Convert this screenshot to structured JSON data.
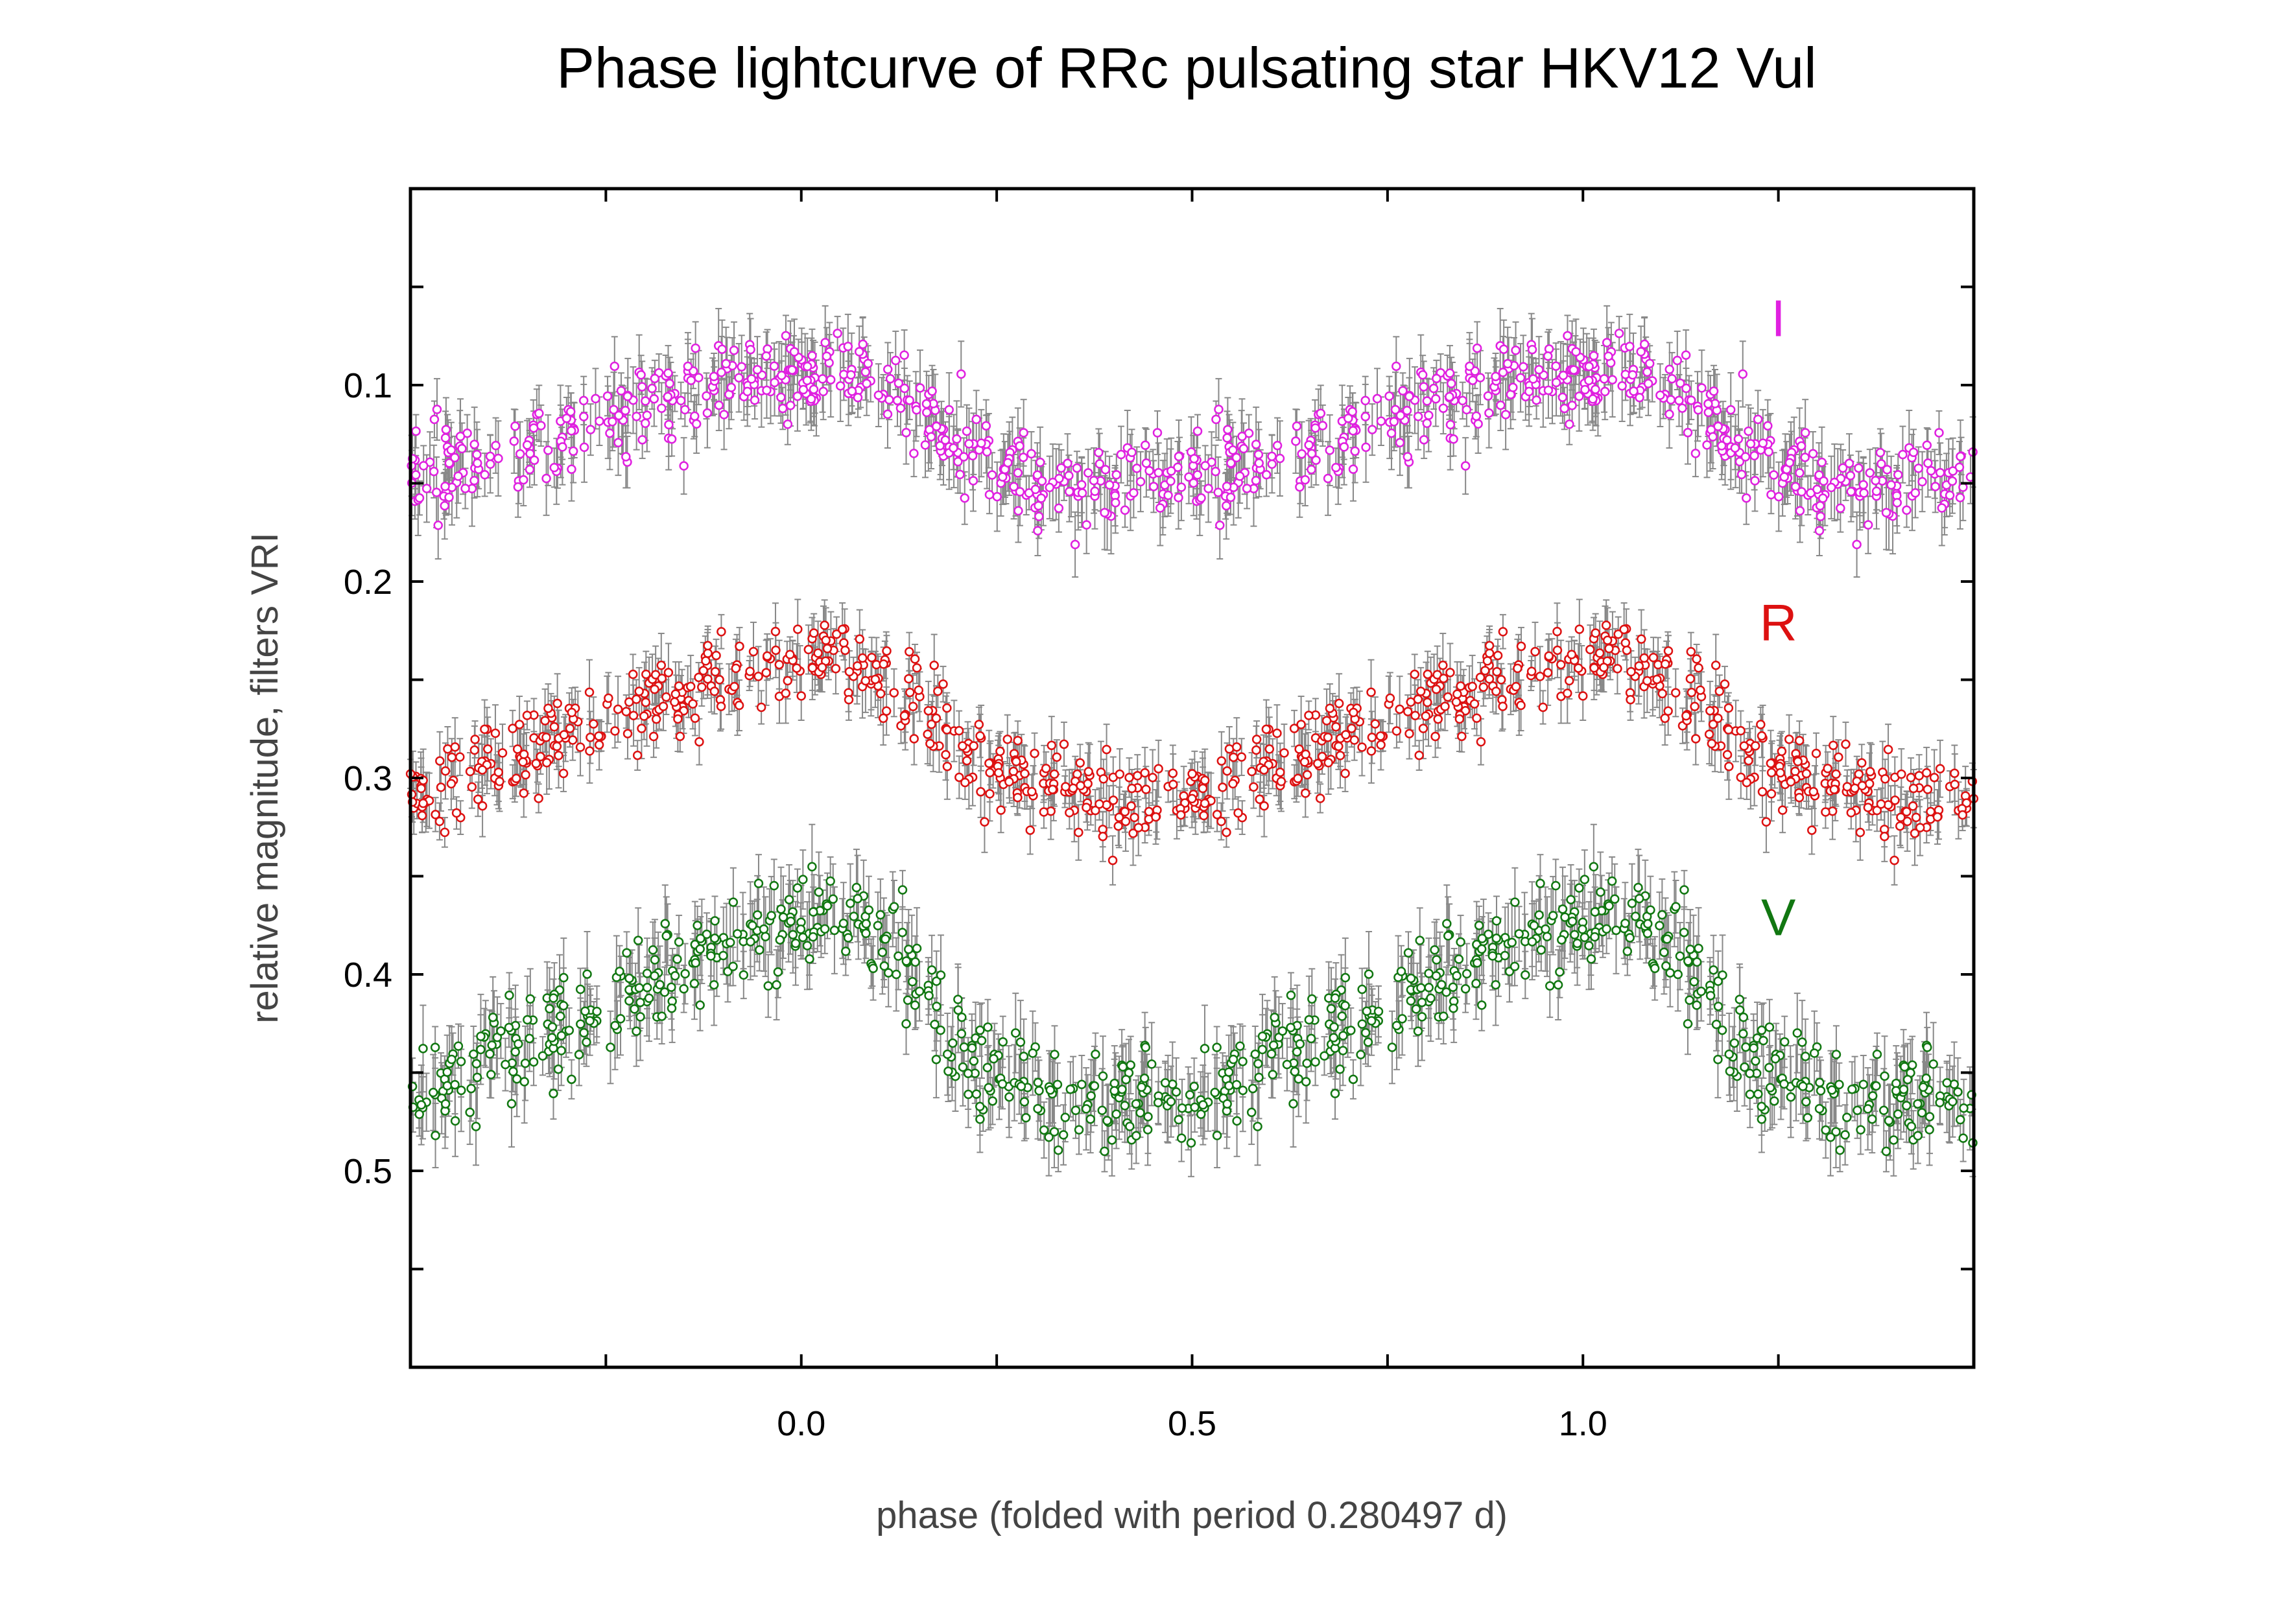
{
  "chart_data": {
    "type": "scatter",
    "title": "Phase lightcurve of RRc pulsating star HKV12 Vul",
    "xlabel": "phase  (folded with period 0.280497 d)",
    "ylabel": "relative magnitude, filters VRI",
    "xlim": [
      -0.5,
      1.5
    ],
    "ylim": [
      0.6,
      0.0
    ],
    "y_inverted": true,
    "x_ticks": [
      {
        "value": -0.25,
        "label": ""
      },
      {
        "value": 0.0,
        "label": "0.0"
      },
      {
        "value": 0.25,
        "label": ""
      },
      {
        "value": 0.5,
        "label": "0.5"
      },
      {
        "value": 0.75,
        "label": ""
      },
      {
        "value": 1.0,
        "label": "1.0"
      },
      {
        "value": 1.25,
        "label": ""
      }
    ],
    "y_ticks": [
      {
        "value": 0.05,
        "label": ""
      },
      {
        "value": 0.1,
        "label": "0.1"
      },
      {
        "value": 0.15,
        "label": ""
      },
      {
        "value": 0.2,
        "label": "0.2"
      },
      {
        "value": 0.25,
        "label": ""
      },
      {
        "value": 0.3,
        "label": "0.3"
      },
      {
        "value": 0.35,
        "label": ""
      },
      {
        "value": 0.4,
        "label": "0.4"
      },
      {
        "value": 0.45,
        "label": ""
      },
      {
        "value": 0.5,
        "label": "0.5"
      },
      {
        "value": 0.55,
        "label": ""
      }
    ],
    "grid": false,
    "error_bar_color": "#888888",
    "series": [
      {
        "name": "I",
        "color": "#e020e0",
        "label_position": {
          "x": 1.25,
          "y": 0.075
        },
        "profile": [
          [
            0.0,
            0.145
          ],
          [
            0.1,
            0.138
          ],
          [
            0.2,
            0.125
          ],
          [
            0.3,
            0.112
          ],
          [
            0.4,
            0.1
          ],
          [
            0.5,
            0.094
          ],
          [
            0.58,
            0.095
          ],
          [
            0.63,
            0.105
          ],
          [
            0.67,
            0.122
          ],
          [
            0.72,
            0.138
          ],
          [
            0.8,
            0.148
          ],
          [
            0.9,
            0.152
          ],
          [
            0.95,
            0.15
          ],
          [
            1.0,
            0.145
          ]
        ],
        "phase_zero_offset": 0.5,
        "scatter": 0.011,
        "error": 0.014
      },
      {
        "name": "R",
        "color": "#dd1111",
        "label_position": {
          "x": 1.25,
          "y": 0.23
        },
        "profile": [
          [
            0.0,
            0.308
          ],
          [
            0.1,
            0.294
          ],
          [
            0.2,
            0.276
          ],
          [
            0.3,
            0.264
          ],
          [
            0.4,
            0.25
          ],
          [
            0.5,
            0.238
          ],
          [
            0.55,
            0.24
          ],
          [
            0.6,
            0.248
          ],
          [
            0.65,
            0.263
          ],
          [
            0.7,
            0.283
          ],
          [
            0.75,
            0.297
          ],
          [
            0.8,
            0.303
          ],
          [
            0.9,
            0.31
          ],
          [
            0.95,
            0.312
          ],
          [
            1.0,
            0.308
          ]
        ],
        "phase_zero_offset": 0.5,
        "scatter": 0.011,
        "error": 0.012
      },
      {
        "name": "V",
        "color": "#117711",
        "label_position": {
          "x": 1.25,
          "y": 0.38
        },
        "profile": [
          [
            0.0,
            0.462
          ],
          [
            0.1,
            0.445
          ],
          [
            0.2,
            0.425
          ],
          [
            0.3,
            0.405
          ],
          [
            0.4,
            0.385
          ],
          [
            0.5,
            0.372
          ],
          [
            0.55,
            0.37
          ],
          [
            0.6,
            0.38
          ],
          [
            0.65,
            0.405
          ],
          [
            0.7,
            0.435
          ],
          [
            0.75,
            0.452
          ],
          [
            0.8,
            0.458
          ],
          [
            0.9,
            0.463
          ],
          [
            0.95,
            0.465
          ],
          [
            1.0,
            0.462
          ]
        ],
        "phase_zero_offset": 0.5,
        "scatter": 0.012,
        "error": 0.016
      }
    ],
    "points_per_cycle": 420,
    "random_seed": 12
  }
}
